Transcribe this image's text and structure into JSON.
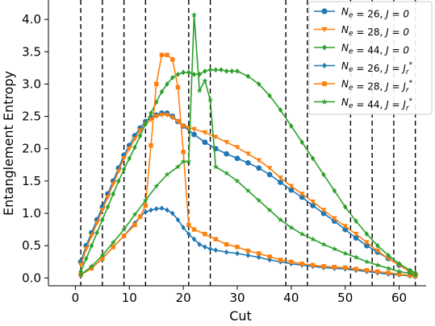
{
  "chart_data": {
    "type": "line",
    "xlabel": "Cut",
    "ylabel": "Entanglement Entropy",
    "xlim": [
      -5,
      65
    ],
    "ylim": [
      -0.12,
      4.3
    ],
    "xticks": [
      0,
      10,
      20,
      30,
      40,
      50,
      60
    ],
    "yticks": [
      0.0,
      0.5,
      1.0,
      1.5,
      2.0,
      2.5,
      3.0,
      3.5,
      4.0
    ],
    "xtick_labels": [
      "0",
      "10",
      "20",
      "30",
      "40",
      "50",
      "60"
    ],
    "ytick_labels": [
      "0.0",
      "0.5",
      "1.0",
      "1.5",
      "2.0",
      "2.5",
      "3.0",
      "3.5",
      "4.0"
    ],
    "vlines": [
      1,
      5,
      9,
      13,
      21,
      25,
      39,
      43,
      51,
      55,
      59,
      63
    ],
    "grid": false,
    "legend_position": "top-right",
    "series": [
      {
        "name": "N_e = 26, J = 0",
        "color": "#1f77b4",
        "marker": "circle",
        "x": [
          1,
          2,
          3,
          4,
          5,
          6,
          7,
          8,
          9,
          10,
          11,
          12,
          13,
          14,
          15,
          16,
          17,
          18,
          19,
          20,
          22,
          24,
          26,
          28,
          30,
          32,
          34,
          36,
          38,
          40,
          42,
          44,
          46,
          48,
          50,
          52,
          54,
          56,
          58,
          60,
          62,
          63
        ],
        "y": [
          0.25,
          0.5,
          0.7,
          0.9,
          1.1,
          1.3,
          1.5,
          1.7,
          1.9,
          2.05,
          2.2,
          2.32,
          2.42,
          2.48,
          2.52,
          2.55,
          2.55,
          2.5,
          2.42,
          2.35,
          2.22,
          2.1,
          2.0,
          1.92,
          1.85,
          1.78,
          1.7,
          1.6,
          1.48,
          1.36,
          1.25,
          1.12,
          1.0,
          0.88,
          0.75,
          0.62,
          0.5,
          0.4,
          0.3,
          0.2,
          0.1,
          0.05
        ]
      },
      {
        "name": "N_e = 28, J = 0",
        "color": "#ff7f0e",
        "marker": "triangle-down",
        "x": [
          1,
          2,
          3,
          4,
          5,
          6,
          7,
          8,
          9,
          10,
          11,
          12,
          13,
          14,
          15,
          16,
          17,
          18,
          19,
          20,
          21,
          22,
          24,
          26,
          28,
          30,
          32,
          34,
          36,
          38,
          40,
          42,
          44,
          46,
          48,
          50,
          52,
          54,
          56,
          58,
          60,
          62,
          63
        ],
        "y": [
          0.2,
          0.45,
          0.65,
          0.85,
          1.05,
          1.25,
          1.45,
          1.65,
          1.85,
          2.0,
          2.15,
          2.28,
          2.38,
          2.45,
          2.5,
          2.52,
          2.52,
          2.48,
          2.42,
          2.35,
          2.32,
          2.3,
          2.25,
          2.18,
          2.1,
          2.02,
          1.92,
          1.82,
          1.7,
          1.55,
          1.42,
          1.3,
          1.18,
          1.05,
          0.92,
          0.8,
          0.68,
          0.55,
          0.42,
          0.3,
          0.2,
          0.1,
          0.05
        ]
      },
      {
        "name": "N_e = 44, J = 0",
        "color": "#2ca02c",
        "marker": "diamond",
        "x": [
          1,
          2,
          3,
          4,
          5,
          6,
          7,
          8,
          9,
          10,
          11,
          12,
          13,
          14,
          15,
          16,
          17,
          18,
          19,
          20,
          21,
          22,
          23,
          24,
          25,
          26,
          27,
          28,
          29,
          30,
          32,
          34,
          36,
          38,
          40,
          42,
          44,
          46,
          48,
          50,
          52,
          54,
          56,
          58,
          60,
          62,
          63
        ],
        "y": [
          0.1,
          0.3,
          0.5,
          0.7,
          0.9,
          1.1,
          1.3,
          1.5,
          1.68,
          1.85,
          2.02,
          2.2,
          2.38,
          2.55,
          2.72,
          2.88,
          3.0,
          3.1,
          3.15,
          3.18,
          3.18,
          3.15,
          3.15,
          3.2,
          3.22,
          3.22,
          3.22,
          3.2,
          3.2,
          3.2,
          3.12,
          3.0,
          2.82,
          2.6,
          2.35,
          2.1,
          1.85,
          1.6,
          1.35,
          1.1,
          0.88,
          0.68,
          0.5,
          0.35,
          0.22,
          0.12,
          0.08
        ]
      },
      {
        "name": "N_e = 26, J = J_r*",
        "color": "#1f77b4",
        "marker": "diamond",
        "x": [
          1,
          3,
          5,
          7,
          9,
          11,
          12,
          13,
          14,
          15,
          16,
          17,
          18,
          19,
          20,
          21,
          22,
          23,
          24,
          25,
          26,
          28,
          30,
          32,
          34,
          36,
          38,
          40,
          42,
          44,
          46,
          48,
          50,
          52,
          54,
          56,
          58,
          60,
          62,
          63
        ],
        "y": [
          0.05,
          0.15,
          0.3,
          0.48,
          0.65,
          0.85,
          0.95,
          1.02,
          1.05,
          1.07,
          1.08,
          1.05,
          1.0,
          0.9,
          0.78,
          0.68,
          0.6,
          0.52,
          0.48,
          0.45,
          0.43,
          0.4,
          0.38,
          0.35,
          0.32,
          0.28,
          0.25,
          0.22,
          0.2,
          0.18,
          0.16,
          0.15,
          0.14,
          0.12,
          0.1,
          0.08,
          0.06,
          0.05,
          0.03,
          0.02
        ]
      },
      {
        "name": "N_e = 28, J = J_r*",
        "color": "#ff7f0e",
        "marker": "square",
        "x": [
          1,
          3,
          5,
          7,
          9,
          11,
          12,
          13,
          14,
          15,
          16,
          17,
          18,
          19,
          20,
          21,
          22,
          24,
          26,
          28,
          30,
          32,
          34,
          36,
          38,
          40,
          42,
          44,
          46,
          48,
          50,
          52,
          54,
          56,
          58,
          60,
          62,
          63
        ],
        "y": [
          0.05,
          0.15,
          0.3,
          0.48,
          0.65,
          0.82,
          0.95,
          1.12,
          2.05,
          3.0,
          3.45,
          3.45,
          3.38,
          2.95,
          1.95,
          0.82,
          0.75,
          0.68,
          0.6,
          0.52,
          0.48,
          0.42,
          0.38,
          0.33,
          0.28,
          0.25,
          0.22,
          0.2,
          0.18,
          0.17,
          0.16,
          0.14,
          0.12,
          0.1,
          0.08,
          0.06,
          0.04,
          0.03
        ]
      },
      {
        "name": "N_e = 44, J = J_r*",
        "color": "#2ca02c",
        "marker": "star",
        "x": [
          1,
          3,
          5,
          7,
          9,
          11,
          13,
          15,
          17,
          19,
          20,
          21,
          22,
          23,
          24,
          25,
          26,
          28,
          30,
          32,
          34,
          36,
          38,
          40,
          42,
          44,
          46,
          48,
          50,
          52,
          54,
          56,
          58,
          60,
          62,
          63
        ],
        "y": [
          0.05,
          0.18,
          0.35,
          0.55,
          0.75,
          0.98,
          1.2,
          1.42,
          1.6,
          1.72,
          1.8,
          1.8,
          4.07,
          2.9,
          3.05,
          2.75,
          1.72,
          1.62,
          1.5,
          1.35,
          1.2,
          1.05,
          0.9,
          0.78,
          0.68,
          0.6,
          0.52,
          0.45,
          0.38,
          0.32,
          0.25,
          0.2,
          0.15,
          0.1,
          0.07,
          0.04
        ]
      }
    ],
    "legend": [
      {
        "label": "N_e = 26, J = 0",
        "n_text": "N",
        "n_sub": "e",
        "num": " = 26, ",
        "j_text": "J",
        "j_rest": " = 0",
        "j_sub": "",
        "j_sup": ""
      },
      {
        "label": "N_e = 28, J = 0",
        "n_text": "N",
        "n_sub": "e",
        "num": " = 28, ",
        "j_text": "J",
        "j_rest": " = 0",
        "j_sub": "",
        "j_sup": ""
      },
      {
        "label": "N_e = 44, J = 0",
        "n_text": "N",
        "n_sub": "e",
        "num": " = 44, ",
        "j_text": "J",
        "j_rest": " = 0",
        "j_sub": "",
        "j_sup": ""
      },
      {
        "label": "N_e = 26, J = J_r*",
        "n_text": "N",
        "n_sub": "e",
        "num": " = 26, ",
        "j_text": "J",
        "j_rest": " = J",
        "j_sub": "r",
        "j_sup": "*"
      },
      {
        "label": "N_e = 28, J = J_r*",
        "n_text": "N",
        "n_sub": "e",
        "num": " = 28, ",
        "j_text": "J",
        "j_rest": " = J",
        "j_sub": "r",
        "j_sup": "*"
      },
      {
        "label": "N_e = 44, J = J_r*",
        "n_text": "N",
        "n_sub": "e",
        "num": " = 44, ",
        "j_text": "J",
        "j_rest": " = J",
        "j_sub": "r",
        "j_sup": "*"
      }
    ]
  }
}
